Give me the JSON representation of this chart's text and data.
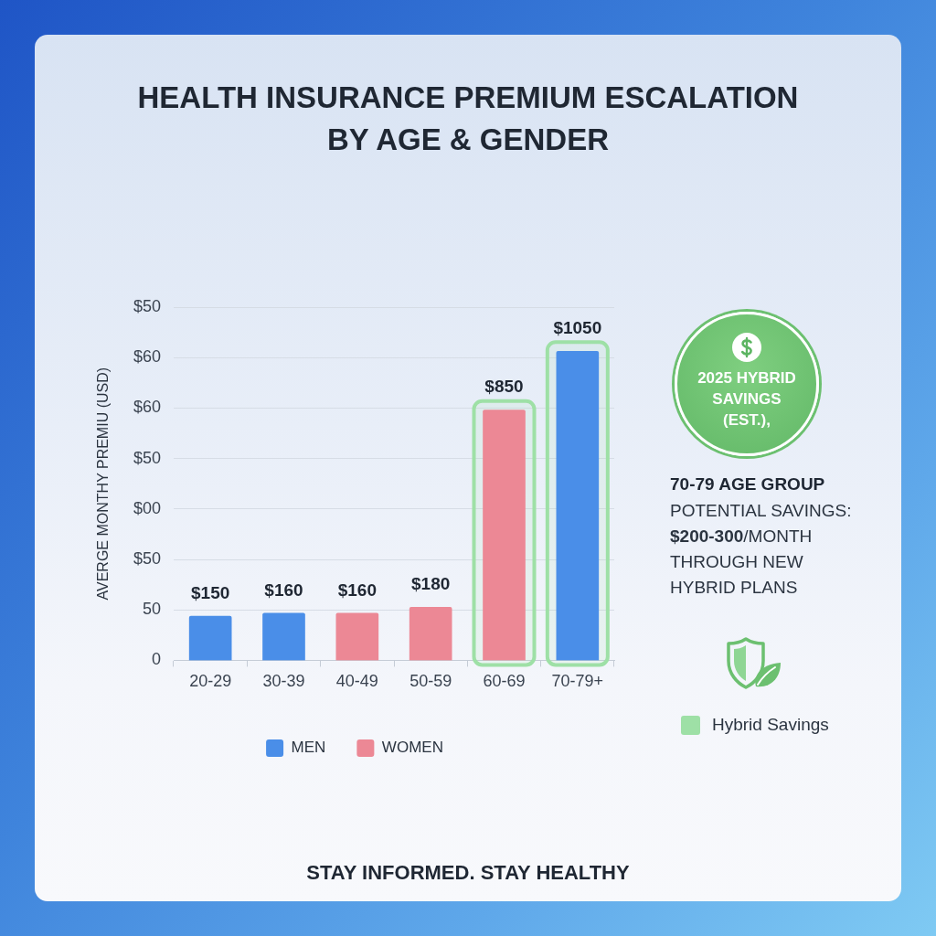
{
  "chart_data": {
    "type": "bar",
    "title": "HEALTH INSURANCE PREMIUM ESCALATION BY AGE & GENDER",
    "ylabel": "AVERGE MONTHY PREMIU (USD)",
    "categories": [
      "20-29",
      "30-39",
      "40-49",
      "50-59",
      "60-69",
      "70-79+"
    ],
    "y_categories": [
      "$50",
      "$60",
      "$60",
      "$50",
      "$00",
      "$50",
      "50",
      "0"
    ],
    "series": [
      {
        "name": "MEN",
        "color": "#4a8ee8",
        "values": [
          150,
          160,
          null,
          null,
          null,
          1050
        ],
        "value_labels": [
          "$150",
          "$160",
          null,
          null,
          null,
          "$1050"
        ]
      },
      {
        "name": "WOMEN",
        "color": "#ec8895",
        "values": [
          null,
          null,
          160,
          180,
          850,
          null
        ],
        "value_labels": [
          null,
          null,
          "$160",
          "$180",
          "$850",
          null
        ]
      }
    ],
    "grid": "y",
    "legend": "bottom",
    "bands": [
      {
        "axis": "x",
        "from": "60-69",
        "to": "60-69",
        "label": "Hybrid Savings",
        "color": "#9ee0a6"
      },
      {
        "axis": "x",
        "from": "70-79+",
        "to": "70-79+",
        "color": "#9ee0a6"
      }
    ],
    "annotations": [
      "2025 HYBRID SAVINGS (EST.),",
      "70-79 AGE GROUP",
      "POTENTIAL SAVINGS: $200-300/MONTH THROUGH NEW HYBRID PLANS",
      "STAY INFORMED. STAY HEALTHY"
    ]
  }
}
